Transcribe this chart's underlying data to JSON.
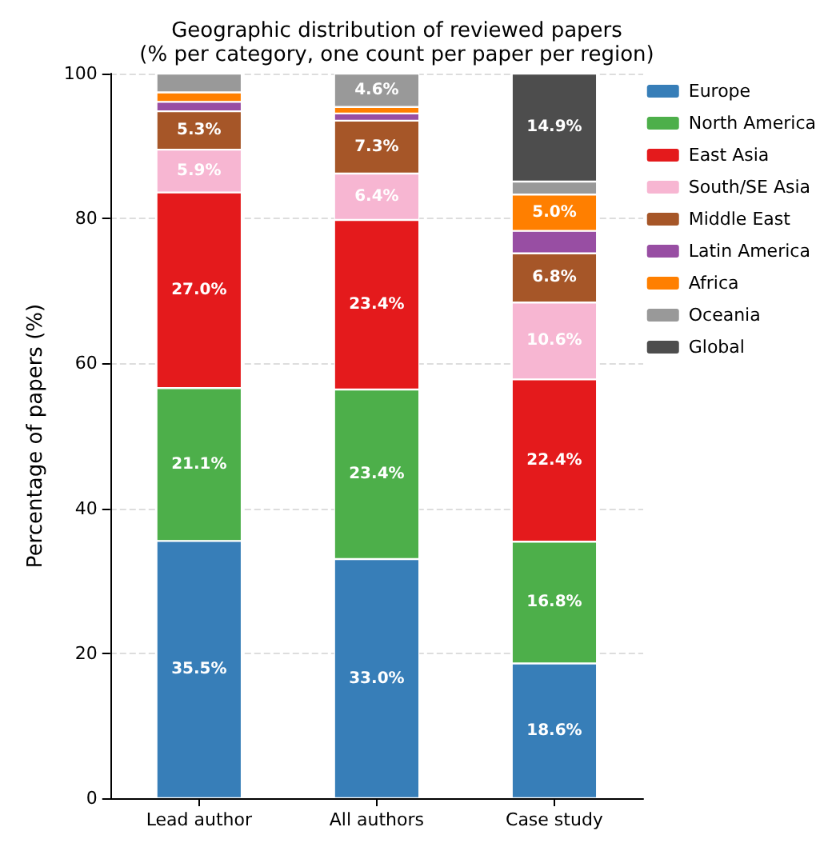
{
  "chart_data": {
    "type": "bar",
    "title": "Geographic distribution of reviewed papers",
    "subtitle": "(% per category, one count per paper per region)",
    "ylabel": "Percentage of papers (%)",
    "categories": [
      "Lead author",
      "All authors",
      "Case study"
    ],
    "stacked": true,
    "ylim": [
      0,
      100
    ],
    "yticks": [
      0,
      20,
      40,
      60,
      80,
      100
    ],
    "grid": "y",
    "legend": "right",
    "series": [
      {
        "name": "Europe",
        "color": "#377eb8",
        "values": [
          35.5,
          33.0,
          18.6
        ],
        "value_labels": [
          "35.5%",
          "33.0%",
          "18.6%"
        ]
      },
      {
        "name": "North America",
        "color": "#4daf4a",
        "values": [
          21.1,
          23.4,
          16.8
        ],
        "value_labels": [
          "21.1%",
          "23.4%",
          "16.8%"
        ]
      },
      {
        "name": "East Asia",
        "color": "#e41a1c",
        "values": [
          27.0,
          23.4,
          22.4
        ],
        "value_labels": [
          "27.0%",
          "23.4%",
          "22.4%"
        ]
      },
      {
        "name": "South/SE Asia",
        "color": "#f7b6d2",
        "values": [
          5.9,
          6.4,
          10.6
        ],
        "value_labels": [
          "5.9%",
          "6.4%",
          "10.6%"
        ]
      },
      {
        "name": "Middle East",
        "color": "#a65628",
        "values": [
          5.3,
          7.3,
          6.8
        ],
        "value_labels": [
          "5.3%",
          "7.3%",
          "6.8%"
        ]
      },
      {
        "name": "Latin America",
        "color": "#984ea3",
        "values": [
          1.3,
          1.0,
          3.1
        ],
        "value_labels": [
          null,
          null,
          null
        ]
      },
      {
        "name": "Africa",
        "color": "#ff7f00",
        "values": [
          1.3,
          0.9,
          5.0
        ],
        "value_labels": [
          null,
          null,
          "5.0%"
        ]
      },
      {
        "name": "Oceania",
        "color": "#999999",
        "values": [
          2.6,
          4.6,
          1.8
        ],
        "value_labels": [
          null,
          "4.6%",
          null
        ]
      },
      {
        "name": "Global",
        "color": "#4d4d4d",
        "values": [
          null,
          null,
          14.9
        ],
        "value_labels": [
          null,
          null,
          "14.9%"
        ]
      }
    ]
  }
}
